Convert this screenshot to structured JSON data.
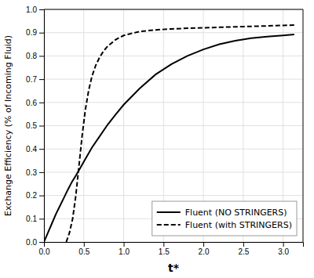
{
  "chart_data": {
    "type": "line",
    "xlabel": "t*",
    "ylabel": "Exchange Efficiency (% of Incoming Fluid)",
    "xlim": [
      0,
      3.25
    ],
    "ylim": [
      0,
      1.0
    ],
    "xticks": [
      {
        "value": 0,
        "label": "0.0"
      },
      0.5,
      {
        "value": 1.0,
        "label": "1.0"
      },
      1.5,
      {
        "value": 2.0,
        "label": "2.0"
      },
      2.5,
      {
        "value": 3.0,
        "label": "3.0"
      }
    ],
    "yticks": [
      {
        "value": 0,
        "label": "0.0"
      },
      0.1,
      0.2,
      0.3,
      0.4,
      0.5,
      0.6,
      0.7,
      0.8,
      0.9,
      {
        "value": 1.0,
        "label": "1.0"
      }
    ],
    "grid": true,
    "legend": "lower right",
    "series": [
      {
        "name": "Fluent (NO STRINGERS)",
        "color": "#000000",
        "line_style": "solid",
        "x": [
          0,
          0.05,
          0.1,
          0.15,
          0.2,
          0.25,
          0.3,
          0.35,
          0.4,
          0.45,
          0.5,
          0.6,
          0.7,
          0.8,
          0.9,
          1.0,
          1.2,
          1.4,
          1.6,
          1.8,
          2.0,
          2.2,
          2.4,
          2.6,
          2.8,
          3.0,
          3.14
        ],
        "values": [
          0,
          0.04,
          0.08,
          0.12,
          0.155,
          0.19,
          0.225,
          0.258,
          0.285,
          0.315,
          0.345,
          0.405,
          0.455,
          0.505,
          0.548,
          0.59,
          0.66,
          0.72,
          0.765,
          0.8,
          0.828,
          0.85,
          0.865,
          0.876,
          0.883,
          0.888,
          0.892
        ]
      },
      {
        "name": "Fluent (with STRINGERS)",
        "color": "#000000",
        "line_style": "dashed",
        "x": [
          0.28,
          0.32,
          0.36,
          0.4,
          0.44,
          0.48,
          0.52,
          0.56,
          0.6,
          0.65,
          0.7,
          0.75,
          0.8,
          0.9,
          1.0,
          1.2,
          1.4,
          1.6,
          1.8,
          2.0,
          2.2,
          2.4,
          2.6,
          2.8,
          3.0,
          3.14
        ],
        "values": [
          0.0,
          0.04,
          0.1,
          0.2,
          0.33,
          0.46,
          0.57,
          0.65,
          0.71,
          0.76,
          0.795,
          0.822,
          0.842,
          0.87,
          0.888,
          0.905,
          0.912,
          0.916,
          0.919,
          0.921,
          0.923,
          0.925,
          0.927,
          0.929,
          0.931,
          0.933
        ]
      }
    ]
  }
}
